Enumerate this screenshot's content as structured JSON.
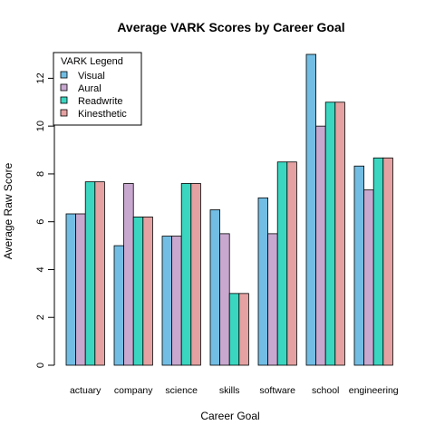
{
  "chart_data": {
    "type": "bar",
    "title": "Average VARK Scores by Career Goal",
    "xlabel": "Career Goal",
    "ylabel": "Average Raw Score",
    "ylim": [
      0,
      13
    ],
    "yticks": [
      0,
      2,
      4,
      6,
      8,
      10,
      12
    ],
    "categories": [
      "actuary",
      "company",
      "science",
      "skills",
      "software",
      "school",
      "engineering"
    ],
    "series": [
      {
        "name": "Visual",
        "color": "#72bde3",
        "values": [
          6.33,
          5.0,
          5.4,
          6.5,
          7.0,
          13.0,
          8.33
        ]
      },
      {
        "name": "Aural",
        "color": "#c8a8cf",
        "values": [
          6.33,
          7.6,
          5.4,
          5.5,
          5.5,
          10.0,
          7.33
        ]
      },
      {
        "name": "Readwrite",
        "color": "#3bd6c0",
        "values": [
          7.67,
          6.2,
          7.6,
          3.0,
          8.5,
          11.0,
          8.67
        ]
      },
      {
        "name": "Kinesthetic",
        "color": "#e5a1a1",
        "values": [
          7.67,
          6.2,
          7.6,
          3.0,
          8.5,
          11.0,
          8.67
        ]
      }
    ],
    "legend": {
      "title": "VARK Legend",
      "position": "top-left"
    },
    "grid": false
  }
}
